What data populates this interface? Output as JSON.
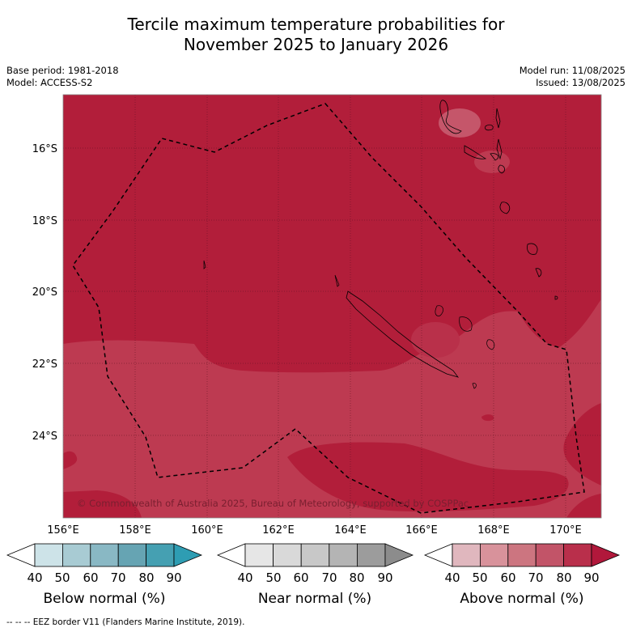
{
  "title_line1": "Tercile maximum temperature probabilities for",
  "title_line2": "November 2025 to January 2026",
  "base_period": "Base period: 1981-2018",
  "model": "Model: ACCESS-S2",
  "model_run": "Model run: 11/08/2025",
  "issued": "Issued: 13/08/2025",
  "copyright": "© Commonwealth of Australia 2025, Bureau of Meteorology, supported by COSPPac",
  "lat_labels": [
    "16°S",
    "18°S",
    "20°S",
    "22°S",
    "24°S"
  ],
  "lon_labels": [
    "156°E",
    "158°E",
    "160°E",
    "162°E",
    "164°E",
    "166°E",
    "168°E",
    "170°E"
  ],
  "legend": {
    "below": {
      "label": "Below normal (%)",
      "ticks": [
        "40",
        "50",
        "60",
        "70",
        "80",
        "90"
      ],
      "colors": [
        "#ffffff",
        "#cde3e8",
        "#a8cbd3",
        "#89b8c4",
        "#66a4b3",
        "#45a0b2",
        "#2e9db3"
      ]
    },
    "near": {
      "label": "Near normal (%)",
      "ticks": [
        "40",
        "50",
        "60",
        "70",
        "80",
        "90"
      ],
      "colors": [
        "#ffffff",
        "#e6e6e6",
        "#d9d9d9",
        "#c8c8c8",
        "#b4b4b4",
        "#9c9c9c",
        "#8c8c8c"
      ]
    },
    "above": {
      "label": "Above normal (%)",
      "ticks": [
        "40",
        "50",
        "60",
        "70",
        "80",
        "90"
      ],
      "colors": [
        "#ffffff",
        "#e0b7be",
        "#d8929b",
        "#cc7580",
        "#c25468",
        "#b92f4b",
        "#b1183b"
      ]
    }
  },
  "footnote": "--  --  -- EEZ border V11 (Flanders Marine Institute, 2019).",
  "map_colors": {
    "dominant": "#b21e3a",
    "lighter": "#bd3a51",
    "lightest": "#c5566a"
  }
}
